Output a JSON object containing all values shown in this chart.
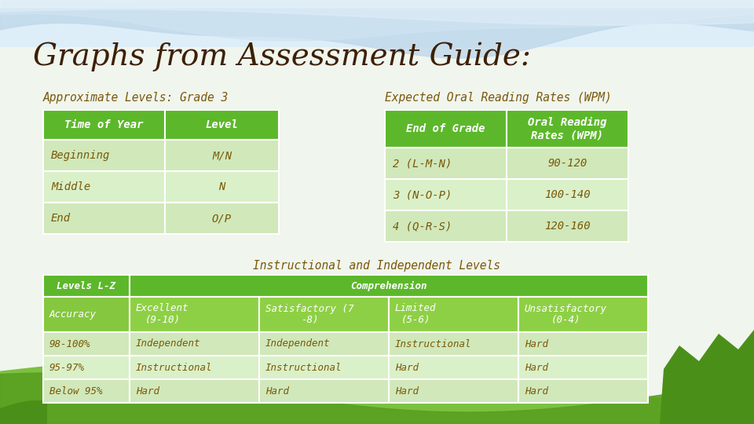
{
  "title": "Graphs from Assessment Guide:",
  "title_color": "#3d2005",
  "subtitle_color": "#7a5808",
  "body_text_color": "#7a5808",
  "header_green": "#5cb82a",
  "light_green": "#cfe8b8",
  "light_green2": "#daf0c8",
  "white_text": "#ffffff",
  "subtitle1": "Approximate Levels: Grade 3",
  "subtitle2": "Expected Oral Reading Rates (WPM)",
  "table1_headers": [
    "Time of Year",
    "Level"
  ],
  "table1_rows": [
    [
      "Beginning",
      "M/N"
    ],
    [
      "Middle",
      "N"
    ],
    [
      "End",
      "O/P"
    ]
  ],
  "table2_header_col1": "End of Grade",
  "table2_header_col2": "Oral Reading\nRates (WPM)",
  "table2_rows": [
    [
      "2 (L-M-N)",
      "90-120"
    ],
    [
      "3 (N-O-P)",
      "100-140"
    ],
    [
      "4 (Q-R-S)",
      "120-160"
    ]
  ],
  "section3_title": "Instructional and Independent Levels",
  "table3_col0_header": "Levels L-Z",
  "table3_col1_header": "Comprehension",
  "table3_rows": [
    [
      "Accuracy",
      "Excellent\n(9-10)",
      "Satisfactory (7\n-8)",
      "Limited\n(5-6)",
      "Unsatisfactory\n(0-4)"
    ],
    [
      "98-100%",
      "Independent",
      "Independent",
      "Instructional",
      "Hard"
    ],
    [
      "95-97%",
      "Instructional",
      "Instructional",
      "Hard",
      "Hard"
    ],
    [
      "Below 95%",
      "Hard",
      "Hard",
      "Hard",
      "Hard"
    ]
  ]
}
